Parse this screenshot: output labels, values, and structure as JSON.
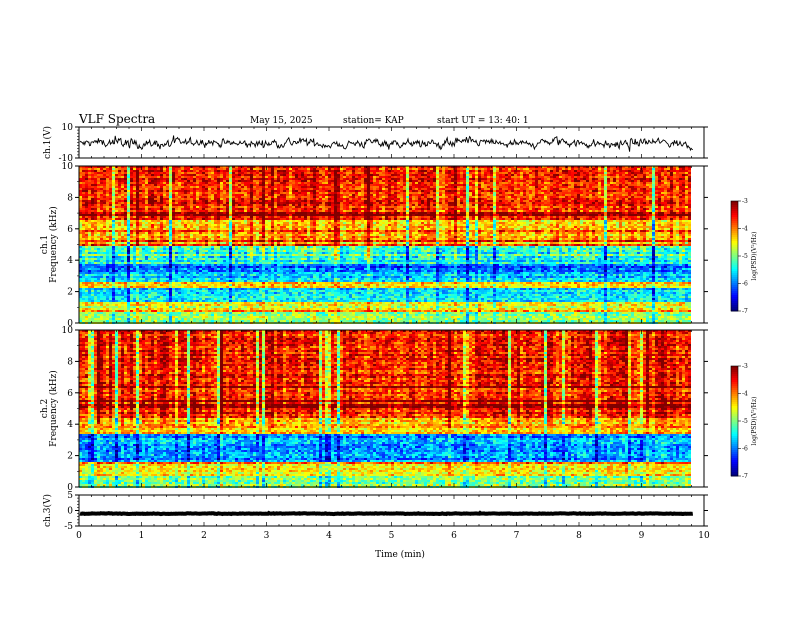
{
  "header": {
    "title": "VLF Spectra",
    "date": "May 15, 2025",
    "station": "station= KAP",
    "start": "start  UT  =   13: 40: 1"
  },
  "chart_data": [
    {
      "type": "line",
      "name": "ch1-waveform",
      "ylabel": "ch.1(V)",
      "ylim": [
        -10,
        10
      ],
      "yticks": [
        "10",
        "-10"
      ],
      "x_range_min": [
        0,
        9.83
      ],
      "signal": "noisy waveform around 0 V, excursions about ±8 V"
    },
    {
      "type": "heatmap",
      "name": "ch1-spectrogram",
      "ylabel": "ch.1\nFrequency (kHz)",
      "ylabel_lines": [
        "ch.1",
        "Frequency (kHz)"
      ],
      "ylim": [
        0,
        10
      ],
      "yticks": [
        "0",
        "2",
        "4",
        "6",
        "8",
        "10"
      ],
      "x_range_min": [
        0,
        9.83
      ],
      "colorbar": {
        "label": "log(PSD)(V²/Hz)",
        "range": [
          -7,
          -3
        ],
        "ticks": [
          "-3",
          "-4",
          "-5",
          "-6",
          "-7"
        ]
      },
      "bands_kHz": [
        {
          "from": 0,
          "to": 0.7,
          "level": -5.0
        },
        {
          "from": 0.7,
          "to": 1.3,
          "level": -4.6
        },
        {
          "from": 1.3,
          "to": 2.2,
          "level": -5.6
        },
        {
          "from": 2.2,
          "to": 2.6,
          "level": -4.4
        },
        {
          "from": 2.6,
          "to": 3.2,
          "level": -5.7
        },
        {
          "from": 3.2,
          "to": 3.7,
          "level": -6.1
        },
        {
          "from": 3.7,
          "to": 4.9,
          "level": -5.4
        },
        {
          "from": 4.9,
          "to": 6.5,
          "level": -4.2
        },
        {
          "from": 6.5,
          "to": 10,
          "level": -3.6
        }
      ]
    },
    {
      "type": "heatmap",
      "name": "ch2-spectrogram",
      "ylabel": "ch.2\nFrequency (kHz)",
      "ylabel_lines": [
        "ch.2",
        "Frequency (kHz)"
      ],
      "ylim": [
        0,
        10
      ],
      "yticks": [
        "0",
        "2",
        "4",
        "6",
        "8",
        "10"
      ],
      "x_range_min": [
        0,
        9.83
      ],
      "colorbar": {
        "label": "log(PSD)(V²/Hz)",
        "range": [
          -7,
          -3
        ],
        "ticks": [
          "-3",
          "-4",
          "-5",
          "-6",
          "-7"
        ]
      },
      "bands_kHz": [
        {
          "from": 0,
          "to": 0.7,
          "level": -5.0
        },
        {
          "from": 0.7,
          "to": 1.6,
          "level": -4.4
        },
        {
          "from": 1.6,
          "to": 3.4,
          "level": -5.9
        },
        {
          "from": 3.4,
          "to": 4.4,
          "level": -4.2
        },
        {
          "from": 4.4,
          "to": 10,
          "level": -3.6
        }
      ]
    },
    {
      "type": "line",
      "name": "ch3-waveform",
      "ylabel": "ch.3(V)",
      "ylim": [
        -5,
        5
      ],
      "yticks": [
        "5",
        "0",
        "-5"
      ],
      "x_range_min": [
        0,
        9.83
      ],
      "signal": "nearly flat, about -1 V"
    }
  ],
  "xaxis": {
    "label": "Time (min)",
    "range": [
      0,
      10
    ],
    "ticks": [
      "0",
      "1",
      "2",
      "3",
      "4",
      "5",
      "6",
      "7",
      "8",
      "9",
      "10"
    ]
  }
}
